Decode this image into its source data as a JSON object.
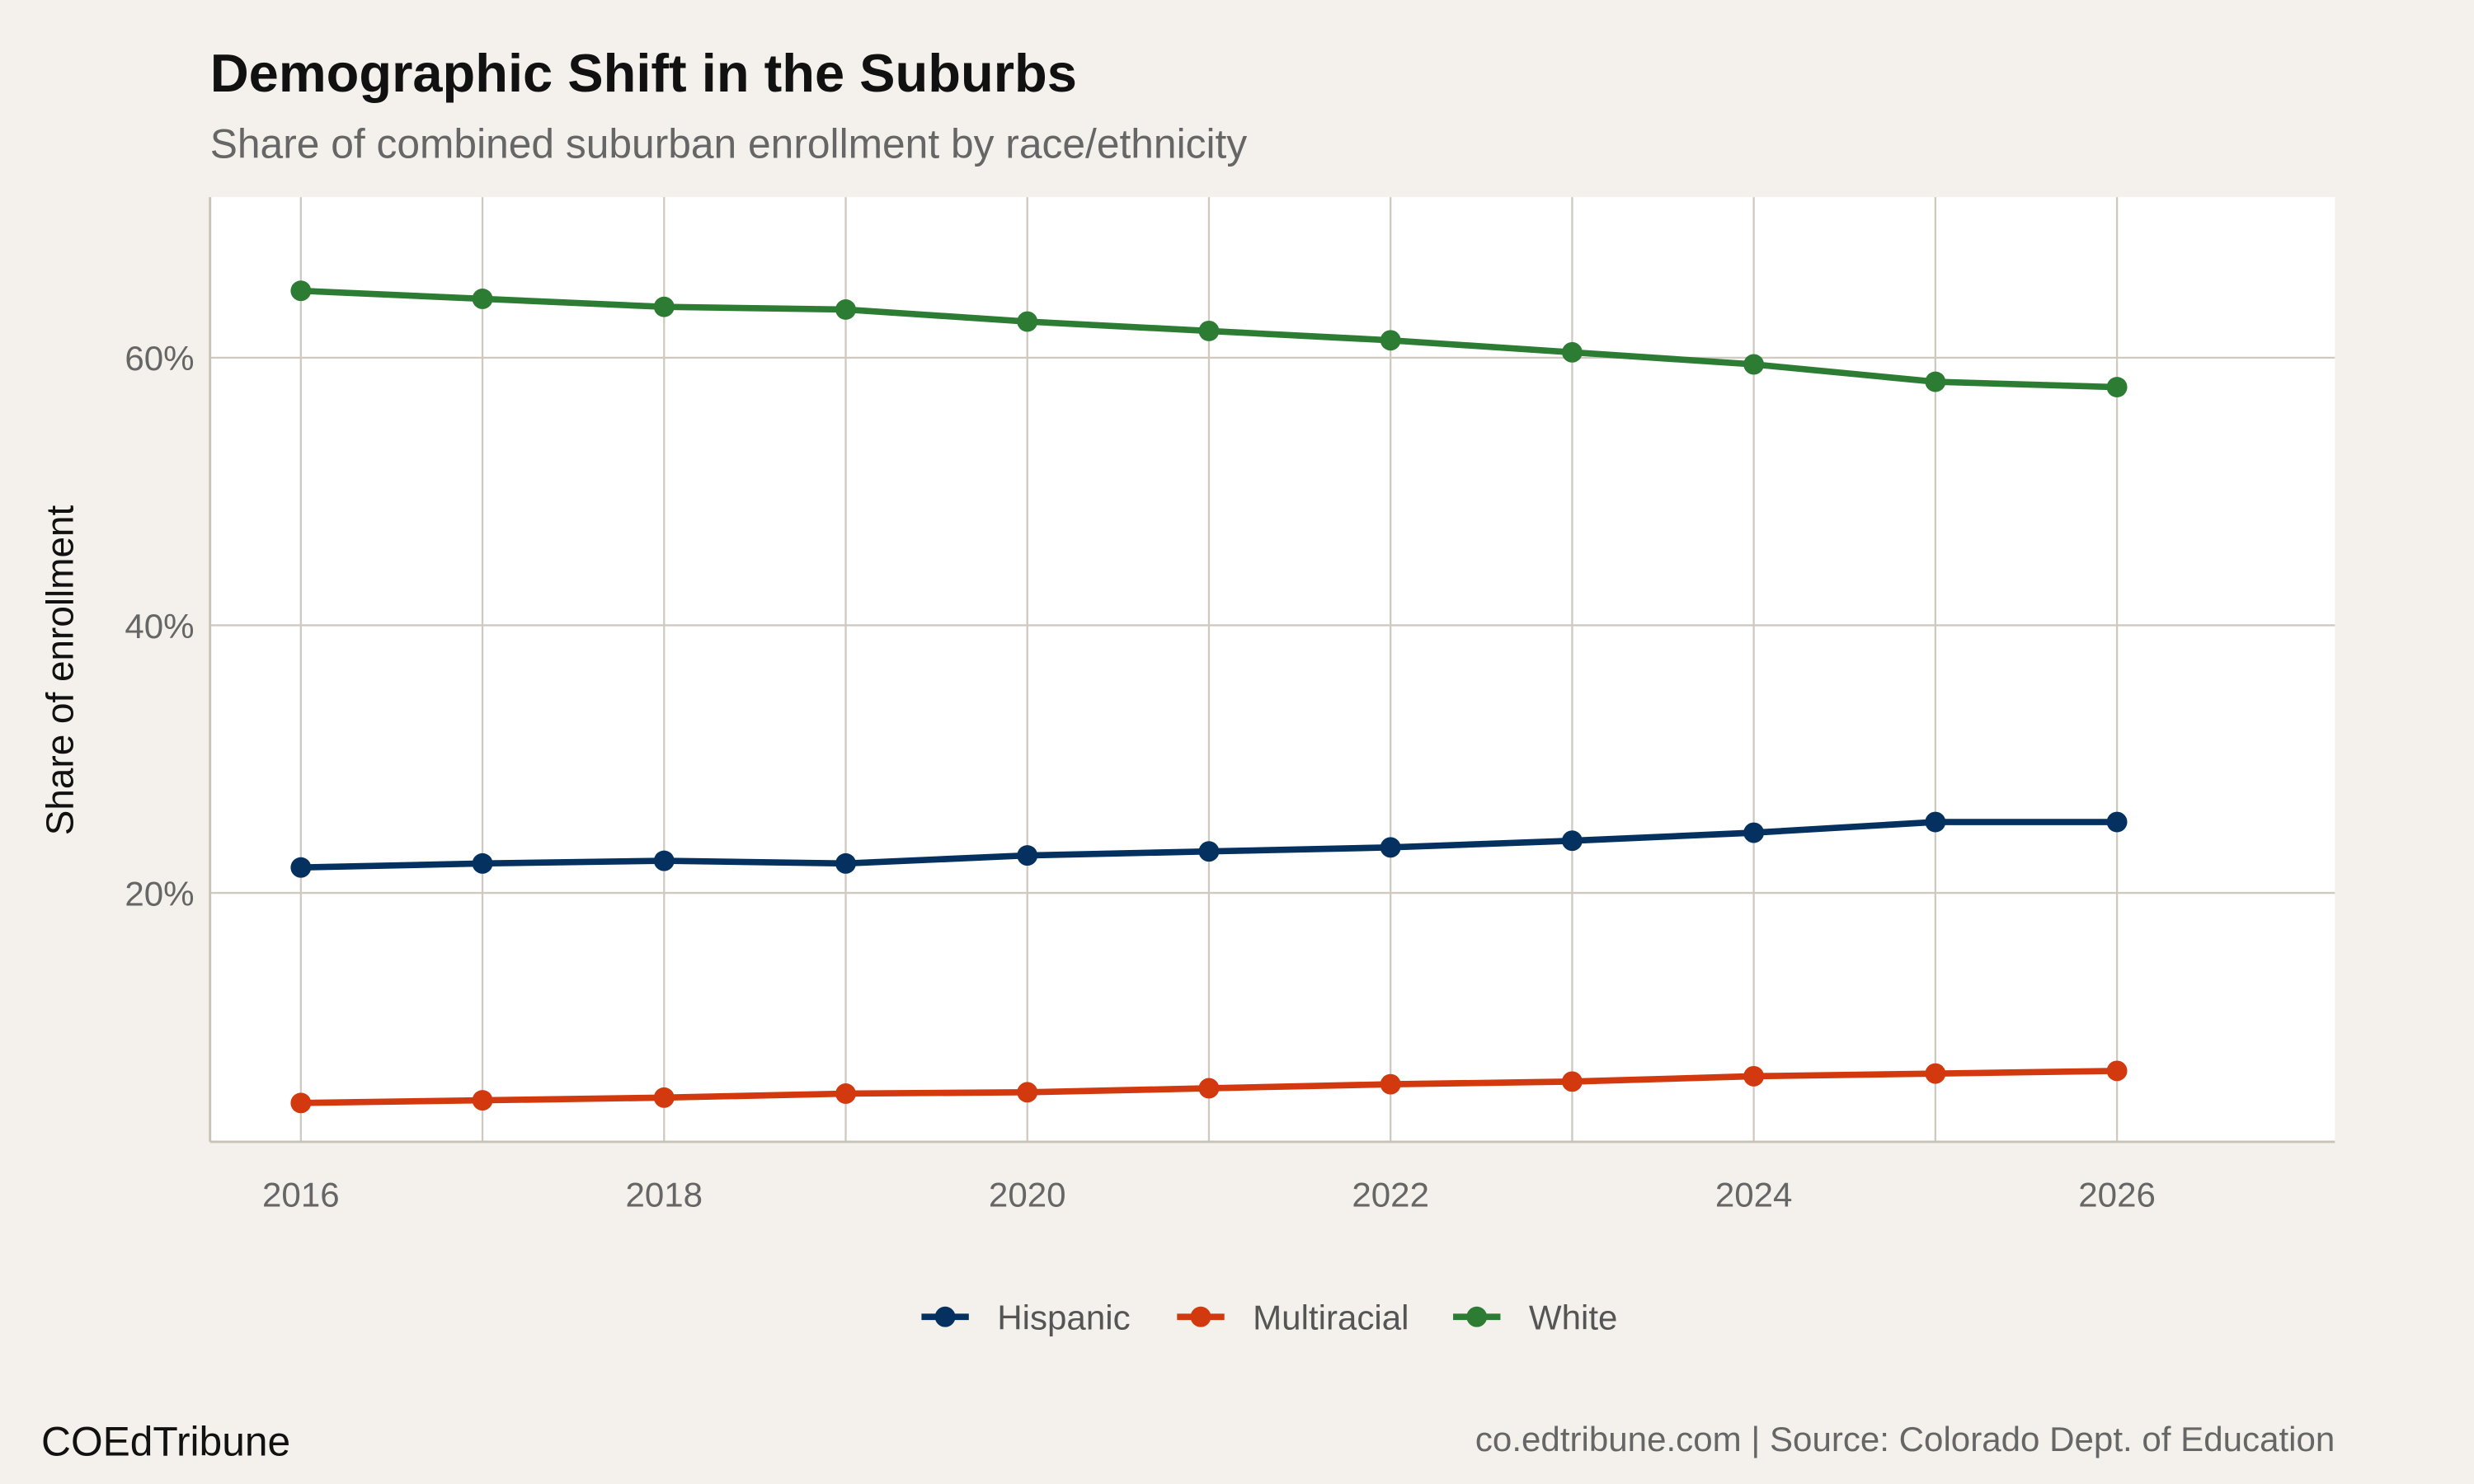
{
  "chart_data": {
    "type": "line",
    "title": "Demographic Shift in the Suburbs",
    "subtitle": "Share of combined suburban enrollment by race/ethnicity",
    "xlabel": "",
    "ylabel": "Share of enrollment",
    "x": [
      2016,
      2017,
      2018,
      2019,
      2020,
      2021,
      2022,
      2023,
      2024,
      2025,
      2026
    ],
    "xlim": [
      2015.5,
      2027.2
    ],
    "ylim": [
      1.4,
      72
    ],
    "x_ticks": [
      "2016",
      "2018",
      "2020",
      "2022",
      "2024",
      "2026"
    ],
    "y_ticks": [
      {
        "value": 20,
        "label": "20%"
      },
      {
        "value": 40,
        "label": "40%"
      },
      {
        "value": 60,
        "label": "60%"
      }
    ],
    "grid": true,
    "legend_position": "bottom",
    "series": [
      {
        "name": "Hispanic",
        "color": "#04315f",
        "values": [
          21.9,
          22.2,
          22.4,
          22.2,
          22.8,
          23.1,
          23.4,
          23.9,
          24.5,
          25.3,
          25.3
        ]
      },
      {
        "name": "Multiracial",
        "color": "#d2390e",
        "values": [
          4.3,
          4.5,
          4.7,
          5.0,
          5.1,
          5.4,
          5.7,
          5.9,
          6.3,
          6.5,
          6.7
        ]
      },
      {
        "name": "White",
        "color": "#2d7c34",
        "values": [
          65.0,
          64.4,
          63.8,
          63.6,
          62.7,
          62.0,
          61.3,
          60.4,
          59.5,
          58.2,
          57.8
        ]
      }
    ]
  },
  "footer": {
    "brand": "COEdTribune",
    "caption": "co.edtribune.com | Source: Colorado Dept. of Education"
  }
}
